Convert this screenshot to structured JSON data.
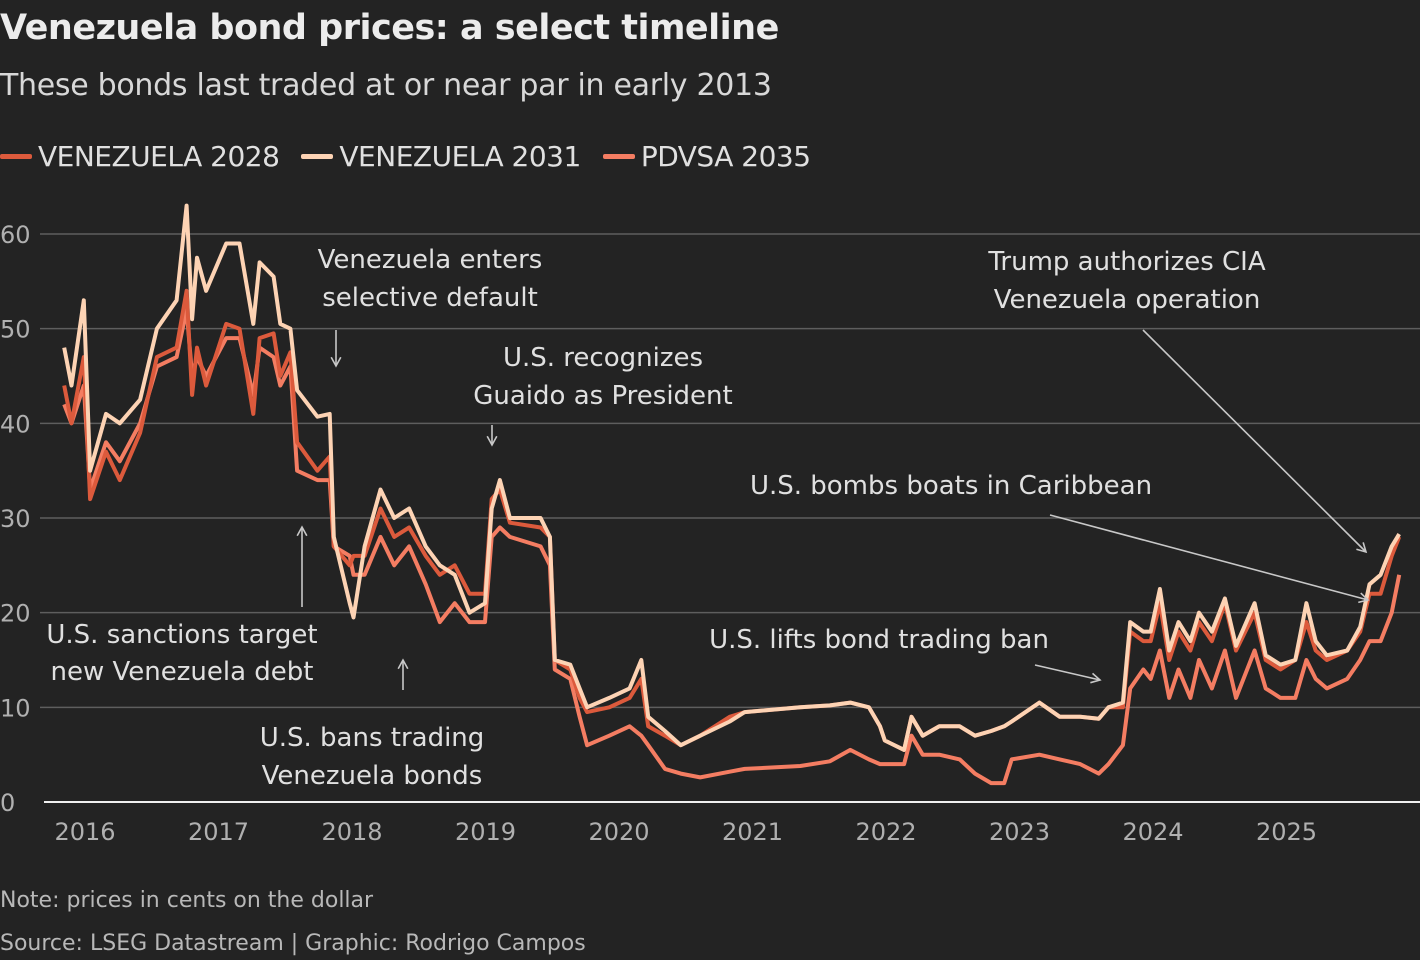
{
  "title": "Venezuela bond prices: a select timeline",
  "subtitle": "These bonds last traded at or near par in early 2013",
  "note": "Note: prices in cents on the dollar",
  "source": "Source: LSEG Datastream | Graphic: Rodrigo Campos",
  "chart_data": {
    "type": "line",
    "title": "Venezuela bond prices: a select timeline",
    "xlabel": "",
    "ylabel": "",
    "ylim": [
      0,
      60
    ],
    "yticks": [
      "0",
      "10",
      "20",
      "30",
      "40",
      "50",
      "60"
    ],
    "xticks": [
      "2016",
      "2017",
      "2018",
      "2019",
      "2020",
      "2021",
      "2022",
      "2023",
      "2024",
      "2025"
    ],
    "grid": "horizontal",
    "legend_position": "top-left",
    "x": [
      "2015-11-05",
      "2015-11-25",
      "2015-12-28",
      "2016-01-15",
      "2016-02-28",
      "2016-04-05",
      "2016-05-30",
      "2016-07-15",
      "2016-09-08",
      "2016-10-05",
      "2016-10-20",
      "2016-11-03",
      "2016-11-28",
      "2017-01-22",
      "2017-02-28",
      "2017-04-05",
      "2017-04-22",
      "2017-05-30",
      "2017-06-18",
      "2017-07-15",
      "2017-08-03",
      "2017-09-28",
      "2017-11-01",
      "2017-11-12",
      "2017-12-25",
      "2018-01-05",
      "2018-02-05",
      "2018-03-18",
      "2018-04-25",
      "2018-06-05",
      "2018-07-20",
      "2018-08-28",
      "2018-10-08",
      "2018-11-18",
      "2018-12-30",
      "2019-01-18",
      "2019-02-10",
      "2019-03-07",
      "2019-05-30",
      "2019-06-25",
      "2019-07-08",
      "2019-08-20",
      "2019-09-15",
      "2019-10-05",
      "2019-12-05",
      "2020-01-30",
      "2020-03-01",
      "2020-03-20",
      "2020-05-05",
      "2020-06-18",
      "2020-08-10",
      "2020-10-30",
      "2020-12-10",
      "2021-05-10",
      "2021-07-30",
      "2021-09-25",
      "2021-11-15",
      "2021-12-15",
      "2021-12-28",
      "2022-02-20",
      "2022-03-10",
      "2022-04-10",
      "2022-05-25",
      "2022-07-20",
      "2022-09-01",
      "2022-10-15",
      "2022-11-20",
      "2022-12-10",
      "2023-02-25",
      "2023-04-20",
      "2023-06-15",
      "2023-08-05",
      "2023-09-01",
      "2023-10-10",
      "2023-10-30",
      "2023-12-05",
      "2023-12-25",
      "2024-01-20",
      "2024-02-15",
      "2024-03-10",
      "2024-04-12",
      "2024-05-05",
      "2024-06-10",
      "2024-07-15",
      "2024-08-15",
      "2024-10-05",
      "2024-11-05",
      "2024-12-15",
      "2025-01-25",
      "2025-02-25",
      "2025-03-20",
      "2025-04-20",
      "2025-06-15",
      "2025-07-20",
      "2025-08-15",
      "2025-09-15",
      "2025-10-15",
      "2025-11-05"
    ],
    "series": [
      {
        "name": "VENEZUELA 2028",
        "color": "#dc5a3c",
        "values": [
          44,
          40,
          47,
          32,
          37,
          34,
          39,
          47,
          48,
          54,
          43,
          48,
          44,
          50.5,
          50,
          41,
          49,
          49.5,
          45,
          47.5,
          38,
          35,
          36.5,
          27,
          25,
          26,
          26,
          31,
          28,
          29,
          26,
          24,
          25,
          22,
          22,
          32,
          33,
          29.5,
          29,
          28,
          15,
          14,
          11,
          9.5,
          10,
          11,
          13,
          8,
          7,
          6,
          7,
          9,
          9.5,
          10,
          10.2,
          10.5,
          10,
          8,
          6.5,
          5.5,
          9,
          7,
          8,
          8,
          7,
          7.5,
          8,
          8.5,
          10.5,
          9,
          9,
          8.8,
          10,
          10,
          18,
          17,
          17,
          21,
          15,
          18,
          16,
          19,
          17,
          21,
          16,
          20,
          15,
          14,
          15,
          19,
          16,
          15,
          16,
          18,
          22,
          22,
          26,
          28
        ]
      },
      {
        "name": "VENEZUELA 2031",
        "color": "#fdd3b4",
        "values": [
          48,
          44,
          53,
          35,
          41,
          40,
          42.5,
          50,
          53,
          63,
          51,
          57.5,
          54,
          59,
          59,
          50.5,
          57,
          55.5,
          50.5,
          50,
          43.5,
          40.7,
          41,
          28,
          21,
          19.5,
          27,
          33,
          30,
          31,
          27,
          25,
          24,
          20,
          21,
          31,
          34,
          30,
          30,
          28,
          15,
          14.5,
          12,
          10,
          11,
          12,
          15,
          9,
          7.5,
          6,
          7,
          8.5,
          9.5,
          10,
          10.2,
          10.5,
          10,
          8,
          6.5,
          5.5,
          9,
          7,
          8,
          8,
          7,
          7.5,
          8,
          8.5,
          10.5,
          9,
          9,
          8.8,
          10,
          10.5,
          19,
          18,
          18,
          22.5,
          16,
          19,
          17,
          20,
          18,
          21.5,
          16.5,
          21,
          15.5,
          14.5,
          15,
          21,
          17,
          15.5,
          16,
          18.5,
          23,
          24,
          27,
          28.3
        ]
      },
      {
        "name": "PDVSA 2035",
        "color": "#f47d62",
        "values": [
          42,
          40,
          44,
          33,
          38,
          36,
          40,
          46,
          47,
          52,
          45,
          47,
          45,
          49,
          49,
          43,
          48,
          47,
          44,
          46,
          35,
          34,
          34,
          27,
          26,
          24,
          24,
          28,
          25,
          27,
          23,
          19,
          21,
          19,
          19,
          28,
          29,
          28,
          27,
          25,
          14,
          13,
          9,
          6,
          7,
          8,
          7,
          6,
          3.5,
          3,
          2.6,
          3.2,
          3.5,
          3.8,
          4.3,
          5.5,
          4.5,
          4,
          4,
          4,
          7,
          5,
          5,
          4.5,
          3,
          2,
          2,
          4.5,
          5,
          4.5,
          4,
          3,
          4,
          6,
          12,
          14,
          13,
          16,
          11,
          14,
          11,
          15,
          12,
          16,
          11,
          16,
          12,
          11,
          11,
          15,
          13,
          12,
          13,
          15,
          17,
          17,
          20,
          24
        ]
      }
    ],
    "annotations": [
      {
        "lines": [
          "Venezuela enters",
          "selective default"
        ],
        "date": "2017-11"
      },
      {
        "lines": [
          "U.S. recognizes",
          "Guaido as President"
        ],
        "date": "2019-01"
      },
      {
        "lines": [
          "U.S. sanctions target",
          "new Venezuela debt"
        ],
        "date": "2017-08"
      },
      {
        "lines": [
          "U.S. bans trading",
          "Venezuela bonds"
        ],
        "date": "2018-06"
      },
      {
        "lines": [
          "U.S. bombs boats in Caribbean"
        ],
        "date": "2025-09"
      },
      {
        "lines": [
          "Trump authorizes CIA",
          "Venezuela operation"
        ],
        "date": "2025-10"
      },
      {
        "lines": [
          "U.S. lifts bond trading ban"
        ],
        "date": "2023-10"
      }
    ]
  }
}
